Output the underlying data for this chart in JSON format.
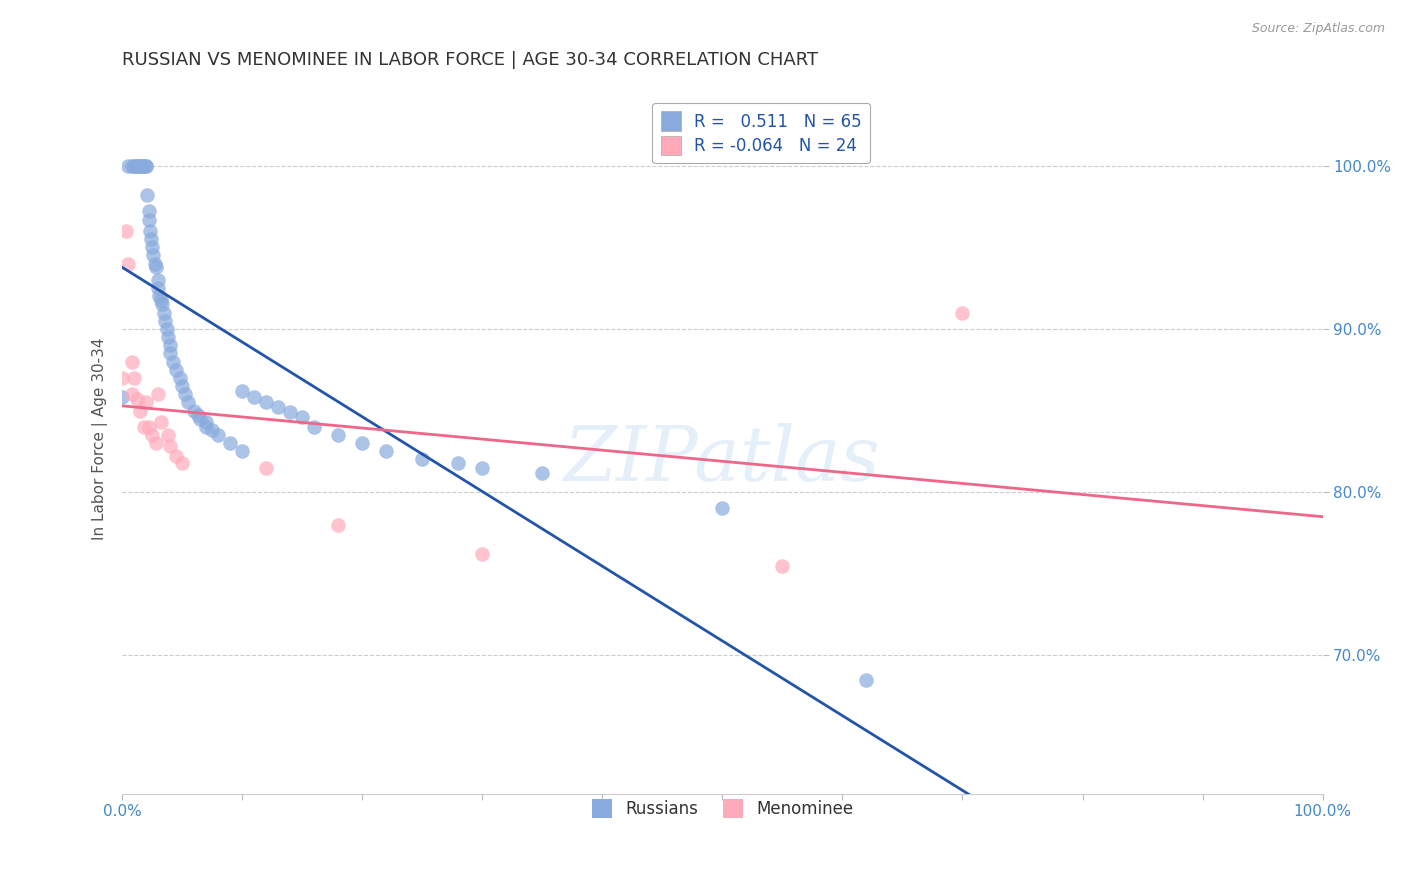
{
  "title": "RUSSIAN VS MENOMINEE IN LABOR FORCE | AGE 30-34 CORRELATION CHART",
  "source": "Source: ZipAtlas.com",
  "ylabel": "In Labor Force | Age 30-34",
  "ytick_labels": [
    "70.0%",
    "80.0%",
    "90.0%",
    "100.0%"
  ],
  "ytick_values": [
    0.7,
    0.8,
    0.9,
    1.0
  ],
  "xlim": [
    0.0,
    1.0
  ],
  "ylim": [
    0.615,
    1.05
  ],
  "watermark": "ZIPatlas",
  "russian_color": "#88aadd",
  "menominee_color": "#ffaabb",
  "russian_line_color": "#2255aa",
  "menominee_line_color": "#ee6688",
  "background_color": "#ffffff",
  "grid_color": "#cccccc",
  "title_color": "#333333",
  "title_fontsize": 13,
  "axis_label_color": "#4488cc",
  "source_color": "#999999",
  "russians_x": [
    0.0,
    0.005,
    0.008,
    0.01,
    0.01,
    0.012,
    0.013,
    0.015,
    0.015,
    0.016,
    0.017,
    0.018,
    0.02,
    0.02,
    0.021,
    0.022,
    0.022,
    0.023,
    0.024,
    0.025,
    0.026,
    0.027,
    0.028,
    0.03,
    0.03,
    0.031,
    0.032,
    0.033,
    0.035,
    0.036,
    0.037,
    0.038,
    0.04,
    0.04,
    0.042,
    0.045,
    0.048,
    0.05,
    0.052,
    0.055,
    0.06,
    0.063,
    0.065,
    0.07,
    0.07,
    0.075,
    0.08,
    0.09,
    0.1,
    0.1,
    0.11,
    0.12,
    0.13,
    0.14,
    0.15,
    0.16,
    0.18,
    0.2,
    0.22,
    0.25,
    0.28,
    0.3,
    0.35,
    0.5,
    0.62
  ],
  "russians_y": [
    0.858,
    1.0,
    1.0,
    1.0,
    1.0,
    1.0,
    1.0,
    1.0,
    1.0,
    1.0,
    1.0,
    1.0,
    1.0,
    1.0,
    0.982,
    0.972,
    0.967,
    0.96,
    0.955,
    0.95,
    0.945,
    0.94,
    0.938,
    0.93,
    0.925,
    0.92,
    0.918,
    0.915,
    0.91,
    0.905,
    0.9,
    0.895,
    0.89,
    0.885,
    0.88,
    0.875,
    0.87,
    0.865,
    0.86,
    0.855,
    0.85,
    0.847,
    0.845,
    0.843,
    0.84,
    0.838,
    0.835,
    0.83,
    0.825,
    0.862,
    0.858,
    0.855,
    0.852,
    0.849,
    0.846,
    0.84,
    0.835,
    0.83,
    0.825,
    0.82,
    0.818,
    0.815,
    0.812,
    0.79,
    0.685
  ],
  "menominee_x": [
    0.0,
    0.003,
    0.005,
    0.008,
    0.008,
    0.01,
    0.012,
    0.015,
    0.018,
    0.02,
    0.022,
    0.025,
    0.028,
    0.03,
    0.032,
    0.038,
    0.04,
    0.045,
    0.05,
    0.12,
    0.18,
    0.3,
    0.55,
    0.7
  ],
  "menominee_y": [
    0.87,
    0.96,
    0.94,
    0.88,
    0.86,
    0.87,
    0.857,
    0.85,
    0.84,
    0.855,
    0.84,
    0.835,
    0.83,
    0.86,
    0.843,
    0.835,
    0.828,
    0.822,
    0.818,
    0.815,
    0.78,
    0.762,
    0.755,
    0.91
  ]
}
